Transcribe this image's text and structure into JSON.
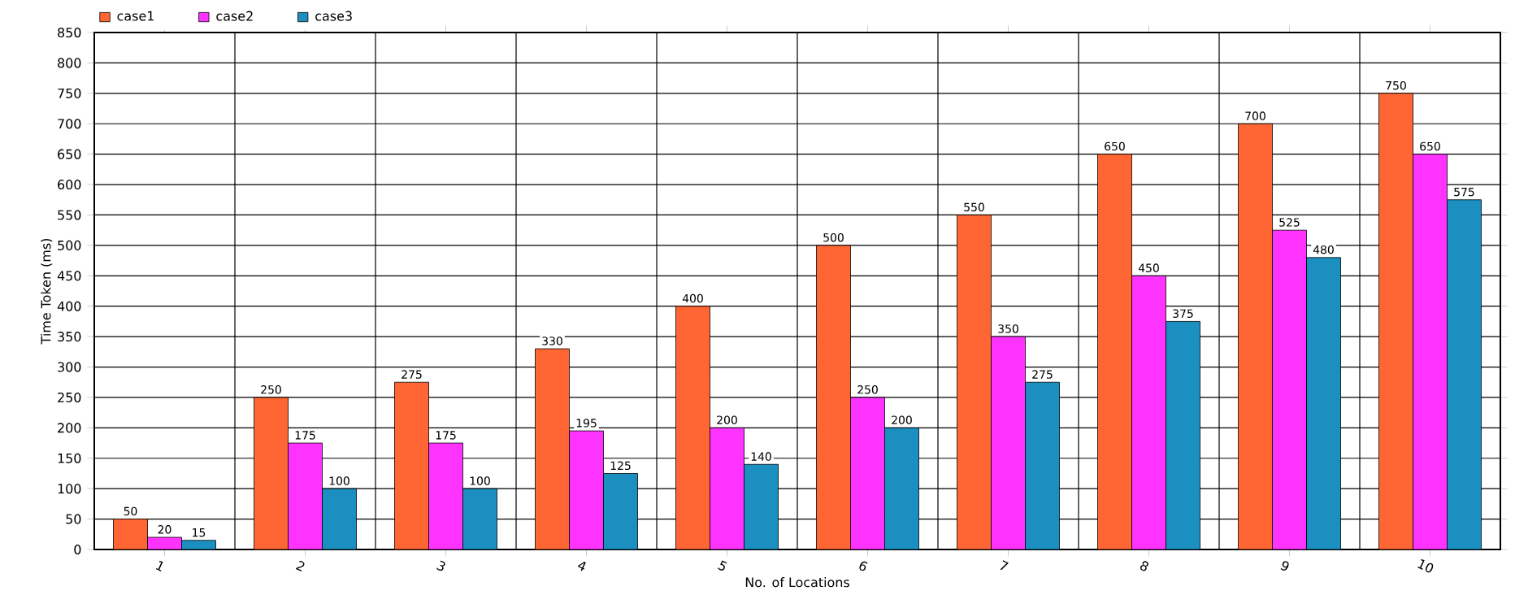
{
  "chart_data": {
    "type": "bar",
    "xlabel": "No. of Locations",
    "ylabel": "Time Token (ms)",
    "categories": [
      "1",
      "2",
      "3",
      "4",
      "5",
      "6",
      "7",
      "8",
      "9",
      "10"
    ],
    "series": [
      {
        "name": "case1",
        "color": "#ff6633",
        "values": [
          50,
          250,
          275,
          330,
          400,
          500,
          550,
          650,
          700,
          750
        ]
      },
      {
        "name": "case2",
        "color": "#ff33ff",
        "values": [
          20,
          175,
          175,
          195,
          200,
          250,
          350,
          450,
          525,
          650
        ]
      },
      {
        "name": "case3",
        "color": "#1a8fc0",
        "values": [
          15,
          100,
          100,
          125,
          140,
          200,
          275,
          375,
          480,
          575
        ]
      }
    ],
    "ylim": [
      0,
      850
    ],
    "yticks": [
      0,
      50,
      100,
      150,
      200,
      250,
      300,
      350,
      400,
      450,
      500,
      550,
      600,
      650,
      700,
      750,
      800,
      850
    ],
    "grid": true,
    "legend": "top left",
    "data_labels": true
  }
}
